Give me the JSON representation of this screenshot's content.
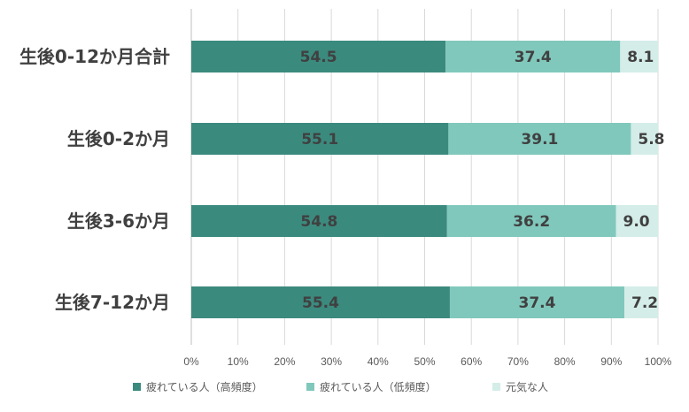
{
  "chart_data": {
    "type": "bar",
    "orientation": "horizontal",
    "stacked": true,
    "categories": [
      "生後0-12か月合計",
      "生後0-2か月",
      "生後3-6か月",
      "生後7-12か月"
    ],
    "series": [
      {
        "name": "疲れている人（高頻度）",
        "values": [
          54.5,
          55.1,
          54.8,
          55.4
        ],
        "color": "#3b8a7e"
      },
      {
        "name": "疲れている人（低頻度）",
        "values": [
          37.4,
          39.1,
          36.2,
          37.4
        ],
        "color": "#80c8bc"
      },
      {
        "name": "元気な人",
        "values": [
          8.1,
          5.8,
          9.0,
          7.2
        ],
        "color": "#d4ede8"
      }
    ],
    "x_ticks": [
      "0%",
      "10%",
      "20%",
      "30%",
      "40%",
      "50%",
      "60%",
      "70%",
      "80%",
      "90%",
      "100%"
    ],
    "xlim": [
      0,
      100
    ],
    "grid": true,
    "legend_position": "bottom"
  }
}
